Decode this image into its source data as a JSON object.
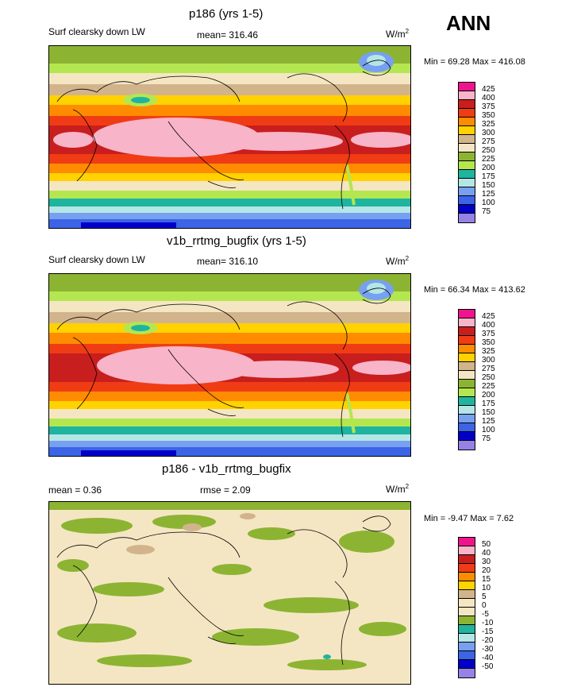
{
  "season": "ANN",
  "panels": [
    {
      "title": "p186 (yrs 1-5)",
      "left_label": "Surf clearsky down LW",
      "stat_label": "mean= 316.46",
      "units_base": "W/m",
      "units_exp": "2",
      "minmax": "Min =  69.28 Max = 416.08",
      "legend": [
        {
          "label": "425",
          "color": "#f0148c"
        },
        {
          "label": "400",
          "color": "#f8b4c8"
        },
        {
          "label": "375",
          "color": "#c81e1e"
        },
        {
          "label": "350",
          "color": "#f03c14"
        },
        {
          "label": "325",
          "color": "#ff8c00"
        },
        {
          "label": "300",
          "color": "#ffd200"
        },
        {
          "label": "275",
          "color": "#d2b48c"
        },
        {
          "label": "250",
          "color": "#f5e6c3"
        },
        {
          "label": "225",
          "color": "#8cb432"
        },
        {
          "label": "200",
          "color": "#b4e650"
        },
        {
          "label": "175",
          "color": "#1eb4a0"
        },
        {
          "label": "150",
          "color": "#b4e6e6"
        },
        {
          "label": "125",
          "color": "#78a0f0"
        },
        {
          "label": "100",
          "color": "#3c64e6"
        },
        {
          "label": "75",
          "color": "#0000c8"
        },
        {
          "label": "",
          "color": "#9682e6"
        }
      ]
    },
    {
      "title": "v1b_rrtmg_bugfix (yrs 1-5)",
      "left_label": "Surf clearsky down LW",
      "stat_label": "mean= 316.10",
      "units_base": "W/m",
      "units_exp": "2",
      "minmax": "Min =  66.34 Max = 413.62",
      "legend": [
        {
          "label": "425",
          "color": "#f0148c"
        },
        {
          "label": "400",
          "color": "#f8b4c8"
        },
        {
          "label": "375",
          "color": "#c81e1e"
        },
        {
          "label": "350",
          "color": "#f03c14"
        },
        {
          "label": "325",
          "color": "#ff8c00"
        },
        {
          "label": "300",
          "color": "#ffd200"
        },
        {
          "label": "275",
          "color": "#d2b48c"
        },
        {
          "label": "250",
          "color": "#f5e6c3"
        },
        {
          "label": "225",
          "color": "#8cb432"
        },
        {
          "label": "200",
          "color": "#b4e650"
        },
        {
          "label": "175",
          "color": "#1eb4a0"
        },
        {
          "label": "150",
          "color": "#b4e6e6"
        },
        {
          "label": "125",
          "color": "#78a0f0"
        },
        {
          "label": "100",
          "color": "#3c64e6"
        },
        {
          "label": "75",
          "color": "#0000c8"
        },
        {
          "label": "",
          "color": "#9682e6"
        }
      ]
    },
    {
      "title": "p186 - v1b_rrtmg_bugfix",
      "left_label": "mean =   0.36",
      "stat_label": "rmse =   2.09",
      "units_base": "W/m",
      "units_exp": "2",
      "minmax": "Min =  -9.47 Max =   7.62",
      "legend": [
        {
          "label": "50",
          "color": "#f0148c"
        },
        {
          "label": "40",
          "color": "#f8b4c8"
        },
        {
          "label": "30",
          "color": "#c81e1e"
        },
        {
          "label": "20",
          "color": "#f03c14"
        },
        {
          "label": "15",
          "color": "#ff8c00"
        },
        {
          "label": "10",
          "color": "#ffd200"
        },
        {
          "label": "5",
          "color": "#d2b48c"
        },
        {
          "label": "0",
          "color": "#f5e6c3"
        },
        {
          "label": "-5",
          "color": "#f5e6c3"
        },
        {
          "label": "-10",
          "color": "#8cb432"
        },
        {
          "label": "-15",
          "color": "#1eb4a0"
        },
        {
          "label": "-20",
          "color": "#b4e6e6"
        },
        {
          "label": "-30",
          "color": "#78a0f0"
        },
        {
          "label": "-40",
          "color": "#3c64e6"
        },
        {
          "label": "-50",
          "color": "#0000c8"
        },
        {
          "label": "",
          "color": "#9682e6"
        }
      ]
    }
  ]
}
